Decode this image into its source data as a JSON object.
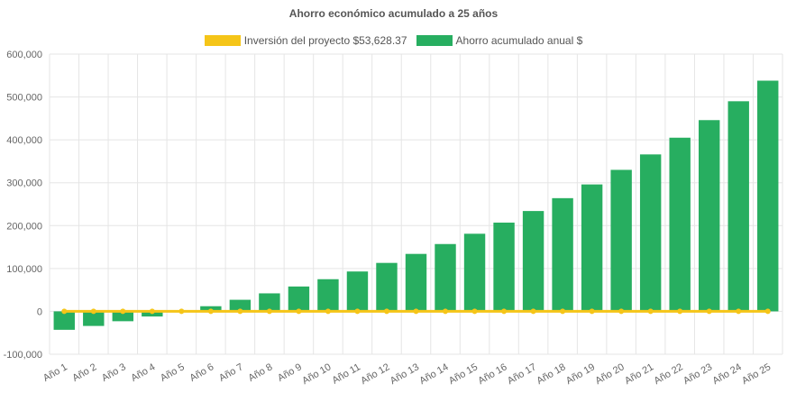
{
  "chart_data": {
    "type": "bar",
    "title": "Ahorro económico acumulado a 25 años",
    "categories": [
      "Año 1",
      "Año 2",
      "Año 3",
      "Año 4",
      "Año 5",
      "Año 6",
      "Año 7",
      "Año 8",
      "Año 9",
      "Año 10",
      "Año 11",
      "Año 12",
      "Año 13",
      "Año 14",
      "Año 15",
      "Año 16",
      "Año 17",
      "Año 18",
      "Año 19",
      "Año 20",
      "Año 21",
      "Año 22",
      "Año 23",
      "Año 24",
      "Año 25"
    ],
    "series": [
      {
        "name": "Inversión del proyecto $53,628.37",
        "type": "line",
        "color": "#f5c518",
        "values": [
          0,
          0,
          0,
          0,
          0,
          0,
          0,
          0,
          0,
          0,
          0,
          0,
          0,
          0,
          0,
          0,
          0,
          0,
          0,
          0,
          0,
          0,
          0,
          0,
          0
        ]
      },
      {
        "name": "Ahorro acumulado anual $",
        "type": "bar",
        "color": "#27ae60",
        "values": [
          -43000,
          -34000,
          -23000,
          -12000,
          -500,
          12000,
          27000,
          42000,
          58000,
          75000,
          93000,
          113000,
          134000,
          157000,
          181000,
          207000,
          234000,
          264000,
          296000,
          330000,
          366000,
          405000,
          446000,
          490000,
          538000
        ]
      }
    ],
    "yticks": [
      "600,000",
      "500,000",
      "400,000",
      "300,000",
      "200,000",
      "100,000",
      "0",
      "-100,000"
    ],
    "ylim": [
      -100000,
      600000
    ],
    "legend_position": "top",
    "grid": true
  }
}
